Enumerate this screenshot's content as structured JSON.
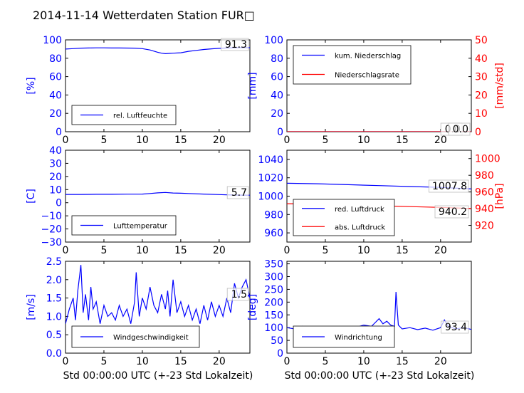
{
  "title": "2014-11-14 Wetterdaten Station FUR□",
  "xlabel": "Std 00:00:00 UTC (+-23 Std Lokalzeit)",
  "colors": {
    "blue": "#0000ff",
    "red": "#ff0000",
    "black": "#000000"
  },
  "chart_data": [
    {
      "id": "humidity",
      "type": "line",
      "x_ticks": [
        0,
        5,
        10,
        15,
        20
      ],
      "xlim": [
        0,
        24
      ],
      "ylim": [
        0,
        100
      ],
      "y_ticks": [
        0,
        20,
        40,
        60,
        80,
        100
      ],
      "ylabel": "[%]",
      "value_label": "91.3",
      "legend": [
        "rel. Luftfeuchte"
      ],
      "legend_position": "lower-left",
      "series": [
        {
          "name": "rel. Luftfeuchte",
          "color": "#0000ff",
          "x": [
            0,
            1,
            2,
            3,
            4,
            5,
            6,
            7,
            8,
            9,
            10,
            11,
            12,
            12.5,
            13,
            13.5,
            14,
            15,
            16,
            17,
            18,
            19,
            20,
            21,
            22,
            23,
            24
          ],
          "y": [
            90,
            90.5,
            91,
            91.2,
            91.3,
            91.3,
            91.2,
            91.2,
            91.1,
            91,
            90.5,
            89,
            86.5,
            85.5,
            85,
            85.3,
            85.5,
            86,
            87.5,
            88.5,
            89.5,
            90.2,
            90.8,
            91.2,
            91.5,
            91.6,
            91.5
          ]
        }
      ]
    },
    {
      "id": "precip",
      "type": "line",
      "x_ticks": [
        0,
        5,
        10,
        15,
        20
      ],
      "xlim": [
        0,
        24
      ],
      "ylim": [
        0,
        100
      ],
      "y_ticks": [
        0,
        20,
        40,
        60,
        80,
        100
      ],
      "ylabel": "[mm]",
      "ylim_right": [
        0,
        50
      ],
      "y_ticks_right": [
        0,
        10,
        20,
        30,
        40,
        50
      ],
      "ylabel_right": "[mm/std]",
      "value_label": "0.0",
      "value_label_2": "0.0",
      "legend": [
        "kum. Niederschlag",
        "Niederschlagsrate"
      ],
      "legend_position": "upper-left",
      "series": [
        {
          "name": "kum. Niederschlag",
          "color": "#0000ff",
          "x": [
            0,
            24
          ],
          "y": [
            0,
            0
          ]
        },
        {
          "name": "Niederschlagsrate",
          "color": "#ff0000",
          "x": [
            0,
            24
          ],
          "y": [
            0,
            0
          ],
          "axis": "right"
        }
      ]
    },
    {
      "id": "temperature",
      "type": "line",
      "x_ticks": [
        0,
        5,
        10,
        15,
        20
      ],
      "xlim": [
        0,
        24
      ],
      "ylim": [
        -30,
        40
      ],
      "y_ticks": [
        -30,
        -20,
        -10,
        0,
        10,
        20,
        30,
        40
      ],
      "ylabel": "[C]",
      "value_label": "5.7",
      "legend": [
        "Lufttemperatur"
      ],
      "legend_position": "lower-left",
      "series": [
        {
          "name": "Lufttemperatur",
          "color": "#0000ff",
          "x": [
            0,
            2,
            4,
            6,
            8,
            10,
            11,
            12,
            13,
            14,
            15,
            16,
            18,
            20,
            22,
            24
          ],
          "y": [
            6.3,
            6.3,
            6.4,
            6.4,
            6.5,
            6.6,
            7,
            7.5,
            7.8,
            7.4,
            7.2,
            7,
            6.6,
            6.2,
            5.8,
            5.7
          ]
        }
      ]
    },
    {
      "id": "pressure",
      "type": "line",
      "x_ticks": [
        0,
        5,
        10,
        15,
        20
      ],
      "xlim": [
        0,
        24
      ],
      "ylim": [
        950,
        1050
      ],
      "y_ticks": [
        960,
        980,
        1000,
        1020,
        1040
      ],
      "ylim_right": [
        900,
        1010
      ],
      "y_ticks_right": [
        920,
        940,
        960,
        980,
        1000
      ],
      "ylabel_right": "[hPa]",
      "value_label": "1007.8",
      "value_label_2": "940.2",
      "legend": [
        "red. Luftdruck",
        "abs. Luftdruck"
      ],
      "legend_position": "lower-left",
      "series": [
        {
          "name": "red. Luftdruck",
          "color": "#0000ff",
          "x": [
            0,
            4,
            8,
            12,
            16,
            20,
            24
          ],
          "y": [
            1014,
            1013.5,
            1012.5,
            1011.5,
            1010.5,
            1009.5,
            1007.8
          ]
        },
        {
          "name": "abs. Luftdruck",
          "color": "#ff0000",
          "axis": "right",
          "x": [
            0,
            4,
            8,
            12,
            16,
            20,
            24
          ],
          "y": [
            946,
            945.5,
            944.5,
            943.5,
            942.5,
            941.5,
            940.2
          ]
        }
      ]
    },
    {
      "id": "windspeed",
      "type": "line",
      "x_ticks": [
        0,
        5,
        10,
        15,
        20
      ],
      "xlim": [
        0,
        24
      ],
      "ylim": [
        0,
        2.5
      ],
      "y_ticks": [
        0.0,
        0.5,
        1.0,
        1.5,
        2.0,
        2.5
      ],
      "ylabel": "[m/s]",
      "value_label": "1.5",
      "legend": [
        "Windgeschwindigkeit"
      ],
      "legend_position": "lower-left",
      "series": [
        {
          "name": "Windgeschwindigkeit",
          "color": "#0000ff",
          "x": [
            0,
            0.5,
            1,
            1.3,
            1.6,
            2,
            2.3,
            2.6,
            3,
            3.3,
            3.6,
            4,
            4.5,
            5,
            5.5,
            6,
            6.5,
            7,
            7.5,
            8,
            8.5,
            9,
            9.2,
            9.6,
            10,
            10.5,
            11,
            11.5,
            12,
            12.5,
            13,
            13.3,
            13.6,
            14,
            14.5,
            15,
            15.5,
            16,
            16.5,
            17,
            17.5,
            18,
            18.5,
            19,
            19.5,
            20,
            20.5,
            21,
            21.5,
            22,
            22.5,
            23,
            23.5,
            24
          ],
          "y": [
            0.8,
            1.2,
            1.5,
            0.9,
            1.7,
            2.4,
            1.1,
            1.6,
            0.9,
            1.8,
            1.2,
            1.4,
            0.8,
            1.3,
            1.0,
            1.1,
            0.9,
            1.3,
            1.0,
            1.2,
            0.8,
            1.4,
            2.2,
            1.0,
            1.5,
            1.2,
            1.8,
            1.3,
            1.1,
            1.6,
            1.2,
            1.7,
            1.0,
            2.0,
            1.1,
            1.4,
            1.0,
            1.3,
            0.9,
            1.2,
            0.8,
            1.3,
            0.9,
            1.4,
            1.0,
            1.3,
            1.0,
            1.5,
            1.1,
            1.9,
            1.5,
            1.8,
            2.0,
            1.5
          ]
        }
      ]
    },
    {
      "id": "winddir",
      "type": "line",
      "x_ticks": [
        0,
        5,
        10,
        15,
        20
      ],
      "xlim": [
        0,
        24
      ],
      "ylim": [
        0,
        360
      ],
      "y_ticks": [
        0,
        50,
        100,
        150,
        200,
        250,
        300,
        350
      ],
      "ylabel": "[deg]",
      "value_label": "93.4",
      "legend": [
        "Windrichtung"
      ],
      "legend_position": "lower-left",
      "series": [
        {
          "name": "Windrichtung",
          "color": "#0000ff",
          "x": [
            0,
            1,
            2,
            3,
            4,
            5,
            6,
            7,
            8,
            9,
            10,
            11,
            11.5,
            12,
            12.5,
            13,
            13.5,
            14,
            14.2,
            14.5,
            15,
            16,
            17,
            18,
            19,
            20,
            20.5,
            21,
            22,
            23,
            24
          ],
          "y": [
            100,
            95,
            105,
            98,
            102,
            96,
            100,
            103,
            99,
            101,
            110,
            105,
            120,
            135,
            115,
            125,
            110,
            105,
            240,
            110,
            95,
            100,
            92,
            98,
            90,
            100,
            130,
            105,
            95,
            100,
            93
          ]
        }
      ]
    }
  ]
}
